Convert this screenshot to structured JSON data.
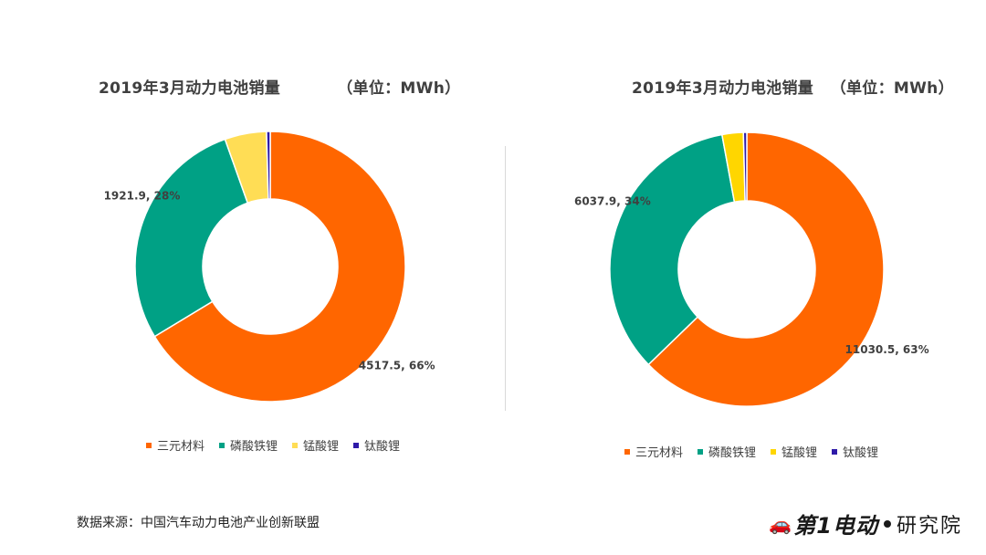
{
  "chart_data": [
    {
      "type": "pie",
      "title": "2019年3月动力电池销量          （单位：MWh）",
      "categories": [
        "三元材料",
        "磷酸铁锂",
        "锰酸锂",
        "钛酸锂"
      ],
      "values": [
        4517.5,
        1921.9,
        340.0,
        30.0
      ],
      "labels": [
        "4517.5, 66%",
        "1921.9, 28%",
        "",
        ""
      ],
      "colors": [
        "#FF6600",
        "#00A185",
        "#FFDD55",
        "#2E1AA8"
      ],
      "legend_position": "bottom"
    },
    {
      "type": "pie",
      "title": "2019年3月动力电池销量   （单位：MWh）",
      "categories": [
        "三元材料",
        "磷酸铁锂",
        "锰酸锂",
        "钛酸锂"
      ],
      "values": [
        11030.5,
        6037.9,
        440.0,
        70.0
      ],
      "labels": [
        "11030.5, 63%",
        "6037.9, 34%",
        "",
        ""
      ],
      "colors": [
        "#FF6600",
        "#00A185",
        "#FFD600",
        "#2E1AA8"
      ],
      "legend_position": "bottom"
    }
  ],
  "footer": {
    "source": "数据来源：中国汽车动力电池产业创新联盟",
    "logo_main": "第1电动",
    "logo_sub": "研究院"
  }
}
